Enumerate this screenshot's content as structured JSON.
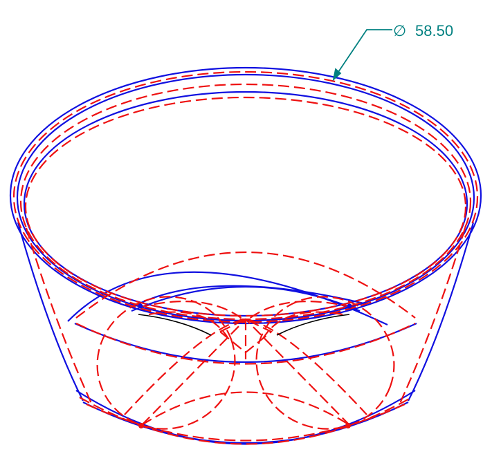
{
  "dimension": {
    "symbol": "∅",
    "value": "58.50"
  },
  "colors": {
    "solid_edge": "#1010e0",
    "hidden_edge": "#ee1111",
    "dimension": "#008080",
    "feature_line": "#000000",
    "background": "#ffffff"
  }
}
